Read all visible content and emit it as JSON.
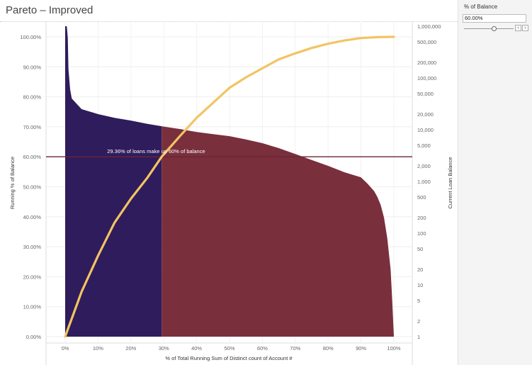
{
  "title": "Pareto – Improved",
  "parameter": {
    "title": "% of Balance",
    "value": "60.00%",
    "level": 0.6,
    "prev_icon": "chevron-left-icon",
    "next_icon": "chevron-right-icon"
  },
  "colors": {
    "included": "#2f1c5c",
    "excluded": "#7a2f3d",
    "cumulative_line": "#f2c462",
    "reference_line": "#6b2535"
  },
  "chart_data": {
    "type": "area",
    "title": "Pareto – Improved",
    "xlabel": "% of Total Running Sum of Distinct count of Account #",
    "ylabel": "Running % of Balance",
    "y2label": "Current Loan Balance",
    "xlim": [
      0,
      1
    ],
    "ylim": [
      0,
      1
    ],
    "y2lim": [
      1,
      1000000
    ],
    "y2_scale": "log",
    "x_ticks": [
      "0%",
      "10%",
      "20%",
      "30%",
      "40%",
      "50%",
      "60%",
      "70%",
      "80%",
      "90%",
      "100%"
    ],
    "y_ticks": [
      "0.00%",
      "10.00%",
      "20.00%",
      "30.00%",
      "40.00%",
      "50.00%",
      "60.00%",
      "70.00%",
      "80.00%",
      "90.00%",
      "100.00%"
    ],
    "y2_ticks": [
      "1",
      "2",
      "5",
      "10",
      "20",
      "50",
      "100",
      "200",
      "500",
      "1,000",
      "2,000",
      "5,000",
      "10,000",
      "20,000",
      "50,000",
      "100,000",
      "200,000",
      "500,000",
      "1,000,000"
    ],
    "annotation": "29.36% of loans make up 60% of balance",
    "reference_y": 0.6,
    "split_x": 0.2936,
    "series": [
      {
        "name": "Current Loan Balance",
        "axis": "right",
        "x": [
          0,
          0.005,
          0.008,
          0.01,
          0.015,
          0.02,
          0.05,
          0.1,
          0.15,
          0.2,
          0.25,
          0.3,
          0.35,
          0.4,
          0.45,
          0.5,
          0.55,
          0.6,
          0.65,
          0.7,
          0.75,
          0.8,
          0.85,
          0.9,
          0.92,
          0.94,
          0.95,
          0.96,
          0.97,
          0.98,
          0.99,
          0.995,
          1.0
        ],
        "y": [
          1000000,
          1000000,
          600000,
          150000,
          60000,
          40000,
          25000,
          20000,
          17000,
          15000,
          13000,
          11500,
          10300,
          9000,
          8200,
          7500,
          6500,
          5500,
          4400,
          3400,
          2600,
          2000,
          1500,
          1200,
          900,
          650,
          500,
          350,
          200,
          80,
          20,
          5,
          1
        ]
      },
      {
        "name": "Running % of Balance",
        "axis": "left",
        "x": [
          0,
          0.01,
          0.02,
          0.05,
          0.1,
          0.15,
          0.2,
          0.25,
          0.2936,
          0.35,
          0.4,
          0.45,
          0.5,
          0.55,
          0.6,
          0.65,
          0.7,
          0.75,
          0.8,
          0.85,
          0.9,
          0.95,
          1.0
        ],
        "y": [
          0,
          0.03,
          0.06,
          0.15,
          0.27,
          0.38,
          0.46,
          0.53,
          0.6,
          0.67,
          0.73,
          0.78,
          0.83,
          0.865,
          0.895,
          0.925,
          0.945,
          0.963,
          0.977,
          0.988,
          0.996,
          0.999,
          1.0
        ]
      }
    ]
  }
}
